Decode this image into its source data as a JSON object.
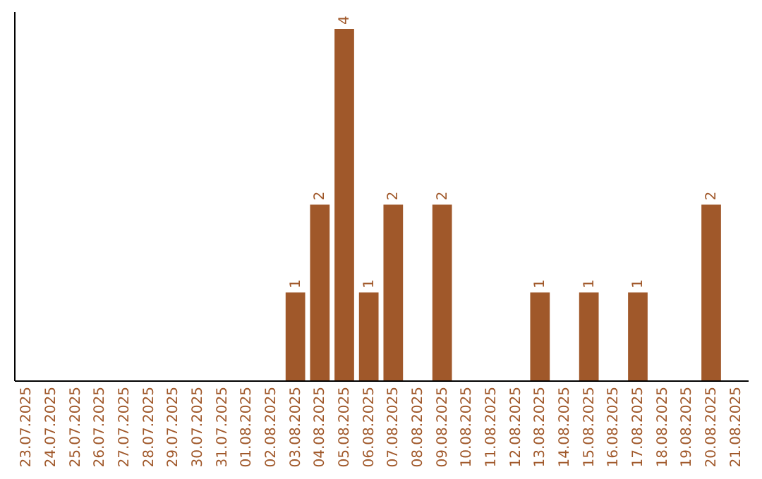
{
  "chart_data": {
    "type": "bar",
    "categories": [
      "23.07.2025",
      "24.07.2025",
      "25.07.2025",
      "26.07.2025",
      "27.07.2025",
      "28.07.2025",
      "29.07.2025",
      "30.07.2025",
      "31.07.2025",
      "01.08.2025",
      "02.08.2025",
      "03.08.2025",
      "04.08.2025",
      "05.08.2025",
      "06.08.2025",
      "07.08.2025",
      "08.08.2025",
      "09.08.2025",
      "10.08.2025",
      "11.08.2025",
      "12.08.2025",
      "13.08.2025",
      "14.08.2025",
      "15.08.2025",
      "16.08.2025",
      "17.08.2025",
      "18.08.2025",
      "19.08.2025",
      "20.08.2025",
      "21.08.2025"
    ],
    "values": [
      0,
      0,
      0,
      0,
      0,
      0,
      0,
      0,
      0,
      0,
      0,
      1,
      2,
      4,
      1,
      2,
      0,
      2,
      0,
      0,
      0,
      1,
      0,
      1,
      0,
      1,
      0,
      0,
      2,
      0
    ],
    "value_labels": [
      null,
      null,
      null,
      null,
      null,
      null,
      null,
      null,
      null,
      null,
      null,
      "1",
      "2",
      "4",
      "1",
      "2",
      null,
      "2",
      null,
      null,
      null,
      "1",
      null,
      "1",
      null,
      "1",
      null,
      null,
      "2",
      null
    ],
    "color": "#a0582a",
    "ylim": [
      0,
      4.2
    ],
    "tick_labels": "x",
    "grid": false
  }
}
